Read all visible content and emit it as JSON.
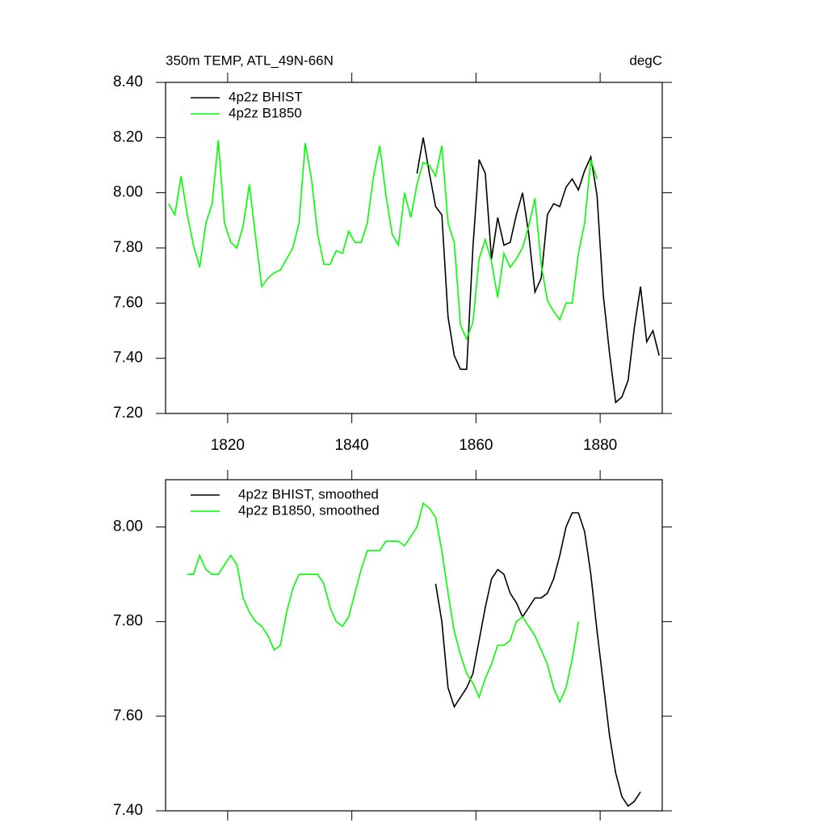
{
  "chart_data": [
    {
      "type": "line",
      "title": "350m TEMP, ATL_49N-66N",
      "subtitle": "degC",
      "x": [
        1810.5,
        1811.5,
        1812.5,
        1813.5,
        1814.5,
        1815.5,
        1816.5,
        1817.5,
        1818.5,
        1819.5,
        1820.5,
        1821.5,
        1822.5,
        1823.5,
        1824.5,
        1825.5,
        1826.5,
        1827.5,
        1828.5,
        1829.5,
        1830.5,
        1831.5,
        1832.5,
        1833.5,
        1834.5,
        1835.5,
        1836.5,
        1837.5,
        1838.5,
        1839.5,
        1840.5,
        1841.5,
        1842.5,
        1843.5,
        1844.5,
        1845.5,
        1846.5,
        1847.5,
        1848.5,
        1849.5,
        1850.5,
        1851.5,
        1852.5,
        1853.5,
        1854.5,
        1855.5,
        1856.5,
        1857.5,
        1858.5,
        1859.5,
        1860.5,
        1861.5,
        1862.5,
        1863.5,
        1864.5,
        1865.5,
        1866.5,
        1867.5,
        1868.5,
        1869.5,
        1870.5,
        1871.5,
        1872.5,
        1873.5,
        1874.5,
        1875.5,
        1876.5,
        1877.5,
        1878.5,
        1879.5,
        1880.5,
        1881.5,
        1882.5,
        1883.5,
        1884.5,
        1885.5,
        1886.5,
        1887.5,
        1888.5,
        1889.5
      ],
      "series": [
        {
          "name": "4p2z BHIST",
          "color": "#000000",
          "values": [
            null,
            null,
            null,
            null,
            null,
            null,
            null,
            null,
            null,
            null,
            null,
            null,
            null,
            null,
            null,
            null,
            null,
            null,
            null,
            null,
            null,
            null,
            null,
            null,
            null,
            null,
            null,
            null,
            null,
            null,
            null,
            null,
            null,
            null,
            null,
            null,
            null,
            null,
            null,
            null,
            8.07,
            8.2,
            8.07,
            7.95,
            7.92,
            7.55,
            7.41,
            7.36,
            7.36,
            7.8,
            8.12,
            8.07,
            7.76,
            7.91,
            7.81,
            7.82,
            7.92,
            8.0,
            7.85,
            7.64,
            7.69,
            7.92,
            7.96,
            7.95,
            8.02,
            8.05,
            8.01,
            8.08,
            8.13,
            7.99,
            7.63,
            7.42,
            7.24,
            7.26,
            7.32,
            7.51,
            7.66,
            7.46,
            7.5,
            7.41
          ]
        },
        {
          "name": "4p2z B1850",
          "color": "#00ff00",
          "values": [
            7.96,
            7.92,
            8.06,
            7.92,
            7.81,
            7.73,
            7.89,
            7.96,
            8.19,
            7.89,
            7.82,
            7.8,
            7.88,
            8.03,
            7.84,
            7.66,
            7.69,
            7.71,
            7.72,
            7.76,
            7.8,
            7.89,
            8.18,
            8.05,
            7.85,
            7.74,
            7.74,
            7.79,
            7.78,
            7.86,
            7.82,
            7.82,
            7.89,
            8.06,
            8.17,
            7.99,
            7.85,
            7.81,
            8.0,
            7.91,
            8.03,
            8.11,
            8.1,
            8.06,
            8.17,
            7.89,
            7.82,
            7.52,
            7.47,
            7.53,
            7.76,
            7.83,
            7.75,
            7.62,
            7.78,
            7.73,
            7.76,
            7.8,
            7.88,
            7.98,
            7.74,
            7.61,
            7.57,
            7.54,
            7.6,
            7.6,
            7.78,
            7.89,
            8.12,
            8.05,
            null,
            null,
            null,
            null,
            null,
            null,
            null,
            null,
            null,
            null
          ]
        }
      ],
      "xlim": [
        1810,
        1890
      ],
      "xticks": [
        1820,
        1840,
        1860,
        1880
      ],
      "ylim": [
        7.2,
        8.4
      ],
      "yticks": [
        {
          "value": 7.2,
          "label": "7.20"
        },
        {
          "value": 7.4,
          "label": "7.40"
        },
        {
          "value": 7.6,
          "label": "7.60"
        },
        {
          "value": 7.8,
          "label": "7.80"
        },
        {
          "value": 8.0,
          "label": "8.00"
        },
        {
          "value": 8.2,
          "label": "8.20"
        },
        {
          "value": 8.4,
          "label": "8.40"
        }
      ],
      "legend": "top-left"
    },
    {
      "type": "line",
      "x": [
        1810.5,
        1811.5,
        1812.5,
        1813.5,
        1814.5,
        1815.5,
        1816.5,
        1817.5,
        1818.5,
        1819.5,
        1820.5,
        1821.5,
        1822.5,
        1823.5,
        1824.5,
        1825.5,
        1826.5,
        1827.5,
        1828.5,
        1829.5,
        1830.5,
        1831.5,
        1832.5,
        1833.5,
        1834.5,
        1835.5,
        1836.5,
        1837.5,
        1838.5,
        1839.5,
        1840.5,
        1841.5,
        1842.5,
        1843.5,
        1844.5,
        1845.5,
        1846.5,
        1847.5,
        1848.5,
        1849.5,
        1850.5,
        1851.5,
        1852.5,
        1853.5,
        1854.5,
        1855.5,
        1856.5,
        1857.5,
        1858.5,
        1859.5,
        1860.5,
        1861.5,
        1862.5,
        1863.5,
        1864.5,
        1865.5,
        1866.5,
        1867.5,
        1868.5,
        1869.5,
        1870.5,
        1871.5,
        1872.5,
        1873.5,
        1874.5,
        1875.5,
        1876.5,
        1877.5,
        1878.5,
        1879.5,
        1880.5,
        1881.5,
        1882.5,
        1883.5,
        1884.5,
        1885.5,
        1886.5,
        1887.5,
        1888.5,
        1889.5
      ],
      "series": [
        {
          "name": "4p2z BHIST, smoothed",
          "color": "#000000",
          "values": [
            null,
            null,
            null,
            null,
            null,
            null,
            null,
            null,
            null,
            null,
            null,
            null,
            null,
            null,
            null,
            null,
            null,
            null,
            null,
            null,
            null,
            null,
            null,
            null,
            null,
            null,
            null,
            null,
            null,
            null,
            null,
            null,
            null,
            null,
            null,
            null,
            null,
            null,
            null,
            null,
            null,
            null,
            null,
            7.88,
            7.8,
            7.66,
            7.62,
            7.64,
            7.66,
            7.69,
            7.76,
            7.83,
            7.89,
            7.91,
            7.9,
            7.86,
            7.84,
            7.81,
            7.83,
            7.85,
            7.85,
            7.86,
            7.89,
            7.94,
            8.0,
            8.03,
            8.03,
            7.99,
            7.9,
            7.78,
            7.67,
            7.56,
            7.48,
            7.43,
            7.41,
            7.42,
            7.44,
            null,
            null,
            null
          ]
        },
        {
          "name": "4p2z B1850, smoothed",
          "color": "#00ff00",
          "values": [
            null,
            null,
            null,
            7.9,
            7.9,
            7.94,
            7.91,
            7.9,
            7.9,
            7.92,
            7.94,
            7.92,
            7.85,
            7.82,
            7.8,
            7.79,
            7.77,
            7.74,
            7.75,
            7.82,
            7.87,
            7.9,
            7.9,
            7.9,
            7.9,
            7.88,
            7.83,
            7.8,
            7.79,
            7.81,
            7.86,
            7.91,
            7.95,
            7.95,
            7.95,
            7.97,
            7.97,
            7.97,
            7.96,
            7.98,
            8.0,
            8.05,
            8.04,
            8.02,
            7.95,
            7.86,
            7.78,
            7.73,
            7.69,
            7.67,
            7.64,
            7.68,
            7.71,
            7.75,
            7.75,
            7.76,
            7.8,
            7.81,
            7.79,
            7.77,
            7.74,
            7.71,
            7.66,
            7.63,
            7.66,
            7.72,
            7.8,
            null,
            null,
            null,
            null,
            null,
            null,
            null,
            null,
            null,
            null,
            null,
            null,
            null
          ]
        }
      ],
      "xlim": [
        1810,
        1890
      ],
      "xticks": [
        1820,
        1840,
        1860,
        1880
      ],
      "ylim": [
        7.4,
        8.1
      ],
      "yticks": [
        {
          "value": 7.4,
          "label": "7.40"
        },
        {
          "value": 7.6,
          "label": "7.60"
        },
        {
          "value": 7.8,
          "label": "7.80"
        },
        {
          "value": 8.0,
          "label": "8.00"
        }
      ],
      "legend": "top-left"
    }
  ]
}
